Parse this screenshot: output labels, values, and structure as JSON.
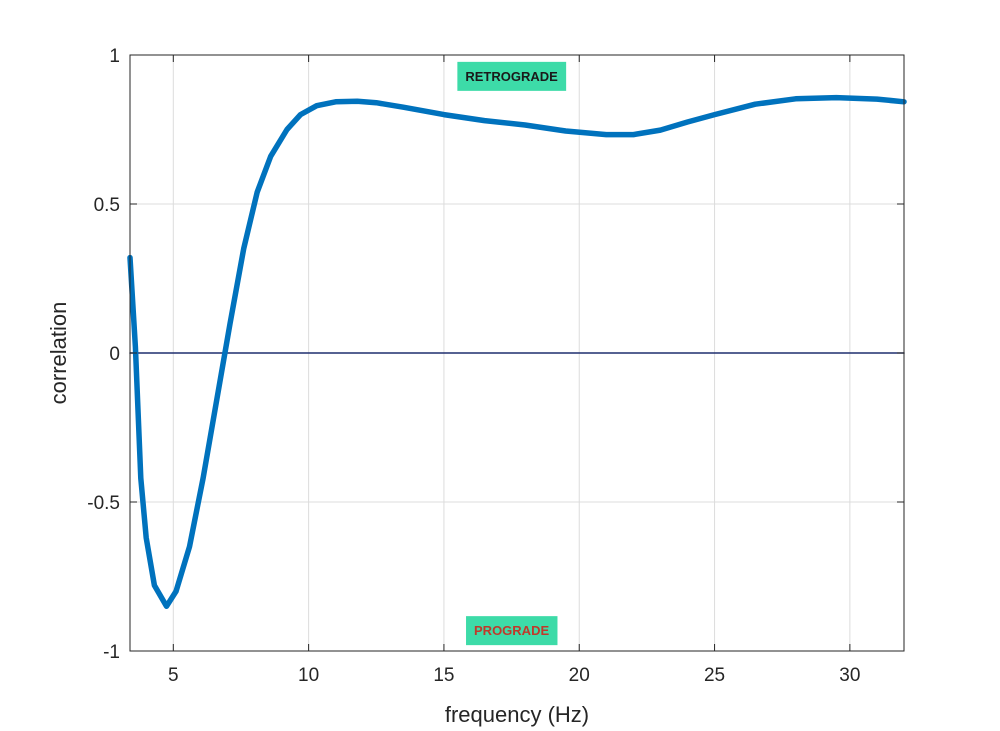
{
  "chart_data": {
    "type": "line",
    "title": "",
    "xlabel": "frequency (Hz)",
    "ylabel": "correlation",
    "xlim": [
      3.4,
      32
    ],
    "ylim": [
      -1,
      1
    ],
    "xticks": [
      5,
      10,
      15,
      20,
      25,
      30
    ],
    "xtick_labels": [
      "5",
      "10",
      "15",
      "20",
      "25",
      "30"
    ],
    "yticks": [
      -1,
      -0.5,
      0,
      0.5,
      1
    ],
    "ytick_labels": [
      "-1",
      "-0.5",
      "0",
      "0.5",
      "1"
    ],
    "grid": true,
    "legend": "none",
    "series": [
      {
        "color": "#0072BD",
        "x": [
          3.4,
          3.6,
          3.8,
          4.0,
          4.3,
          4.75,
          5.1,
          5.6,
          6.1,
          6.6,
          7.1,
          7.6,
          8.1,
          8.6,
          9.2,
          9.7,
          10.3,
          11.0,
          11.8,
          12.5,
          13.5,
          15.0,
          16.5,
          18.0,
          19.5,
          21.0,
          22.0,
          23.0,
          24.0,
          25.0,
          26.5,
          28.0,
          29.5,
          31.0,
          32.0
        ],
        "y": [
          0.32,
          0.02,
          -0.42,
          -0.62,
          -0.78,
          -0.85,
          -0.8,
          -0.65,
          -0.42,
          -0.16,
          0.1,
          0.35,
          0.54,
          0.66,
          0.75,
          0.8,
          0.83,
          0.843,
          0.845,
          0.84,
          0.825,
          0.8,
          0.78,
          0.765,
          0.745,
          0.733,
          0.733,
          0.748,
          0.775,
          0.8,
          0.835,
          0.853,
          0.857,
          0.852,
          0.843
        ]
      },
      {
        "color": "#1F2E6E",
        "x": [
          3.4,
          32
        ],
        "y": [
          0,
          0
        ]
      }
    ],
    "annotations": [
      {
        "text": "RETROGRADE",
        "x": 17.5,
        "y": 0.93,
        "text_color": "#1a1a1a",
        "background": "#3DDBA8"
      },
      {
        "text": "PROGRADE",
        "x": 17.5,
        "y": -0.93,
        "text_color": "#C0392B",
        "background": "#3DDBA8"
      }
    ]
  }
}
